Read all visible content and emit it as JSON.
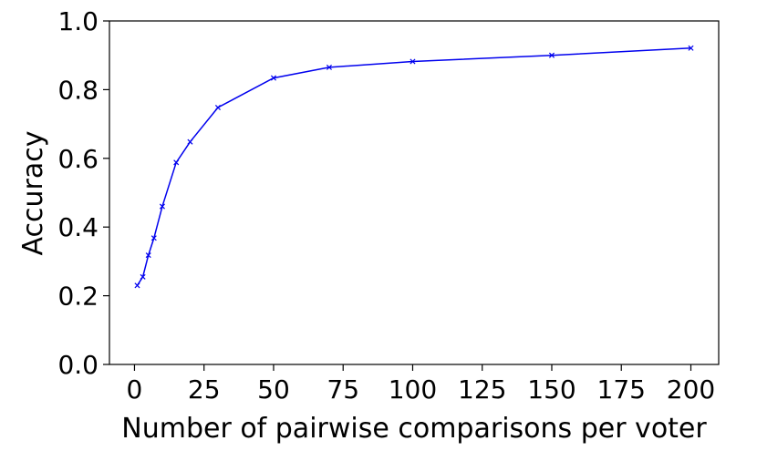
{
  "chart_data": {
    "type": "line",
    "title": "",
    "xlabel": "Number of pairwise comparisons per voter",
    "ylabel": "Accuracy",
    "xlim": [
      -9,
      210
    ],
    "ylim": [
      0.0,
      1.0
    ],
    "xticks": [
      0,
      25,
      50,
      75,
      100,
      125,
      150,
      175,
      200
    ],
    "xtick_labels": [
      "0",
      "25",
      "50",
      "75",
      "100",
      "125",
      "150",
      "175",
      "200"
    ],
    "yticks": [
      0.0,
      0.2,
      0.4,
      0.6,
      0.8,
      1.0
    ],
    "ytick_labels": [
      "0.0",
      "0.2",
      "0.4",
      "0.6",
      "0.8",
      "1.0"
    ],
    "grid": false,
    "legend": "none",
    "series": [
      {
        "color": "#0000ee",
        "marker": "x",
        "x": [
          1,
          3,
          5,
          7,
          10,
          15,
          20,
          30,
          50,
          70,
          100,
          150,
          200
        ],
        "y": [
          0.23,
          0.255,
          0.318,
          0.368,
          0.46,
          0.588,
          0.648,
          0.748,
          0.834,
          0.865,
          0.882,
          0.9,
          0.921
        ]
      }
    ]
  }
}
